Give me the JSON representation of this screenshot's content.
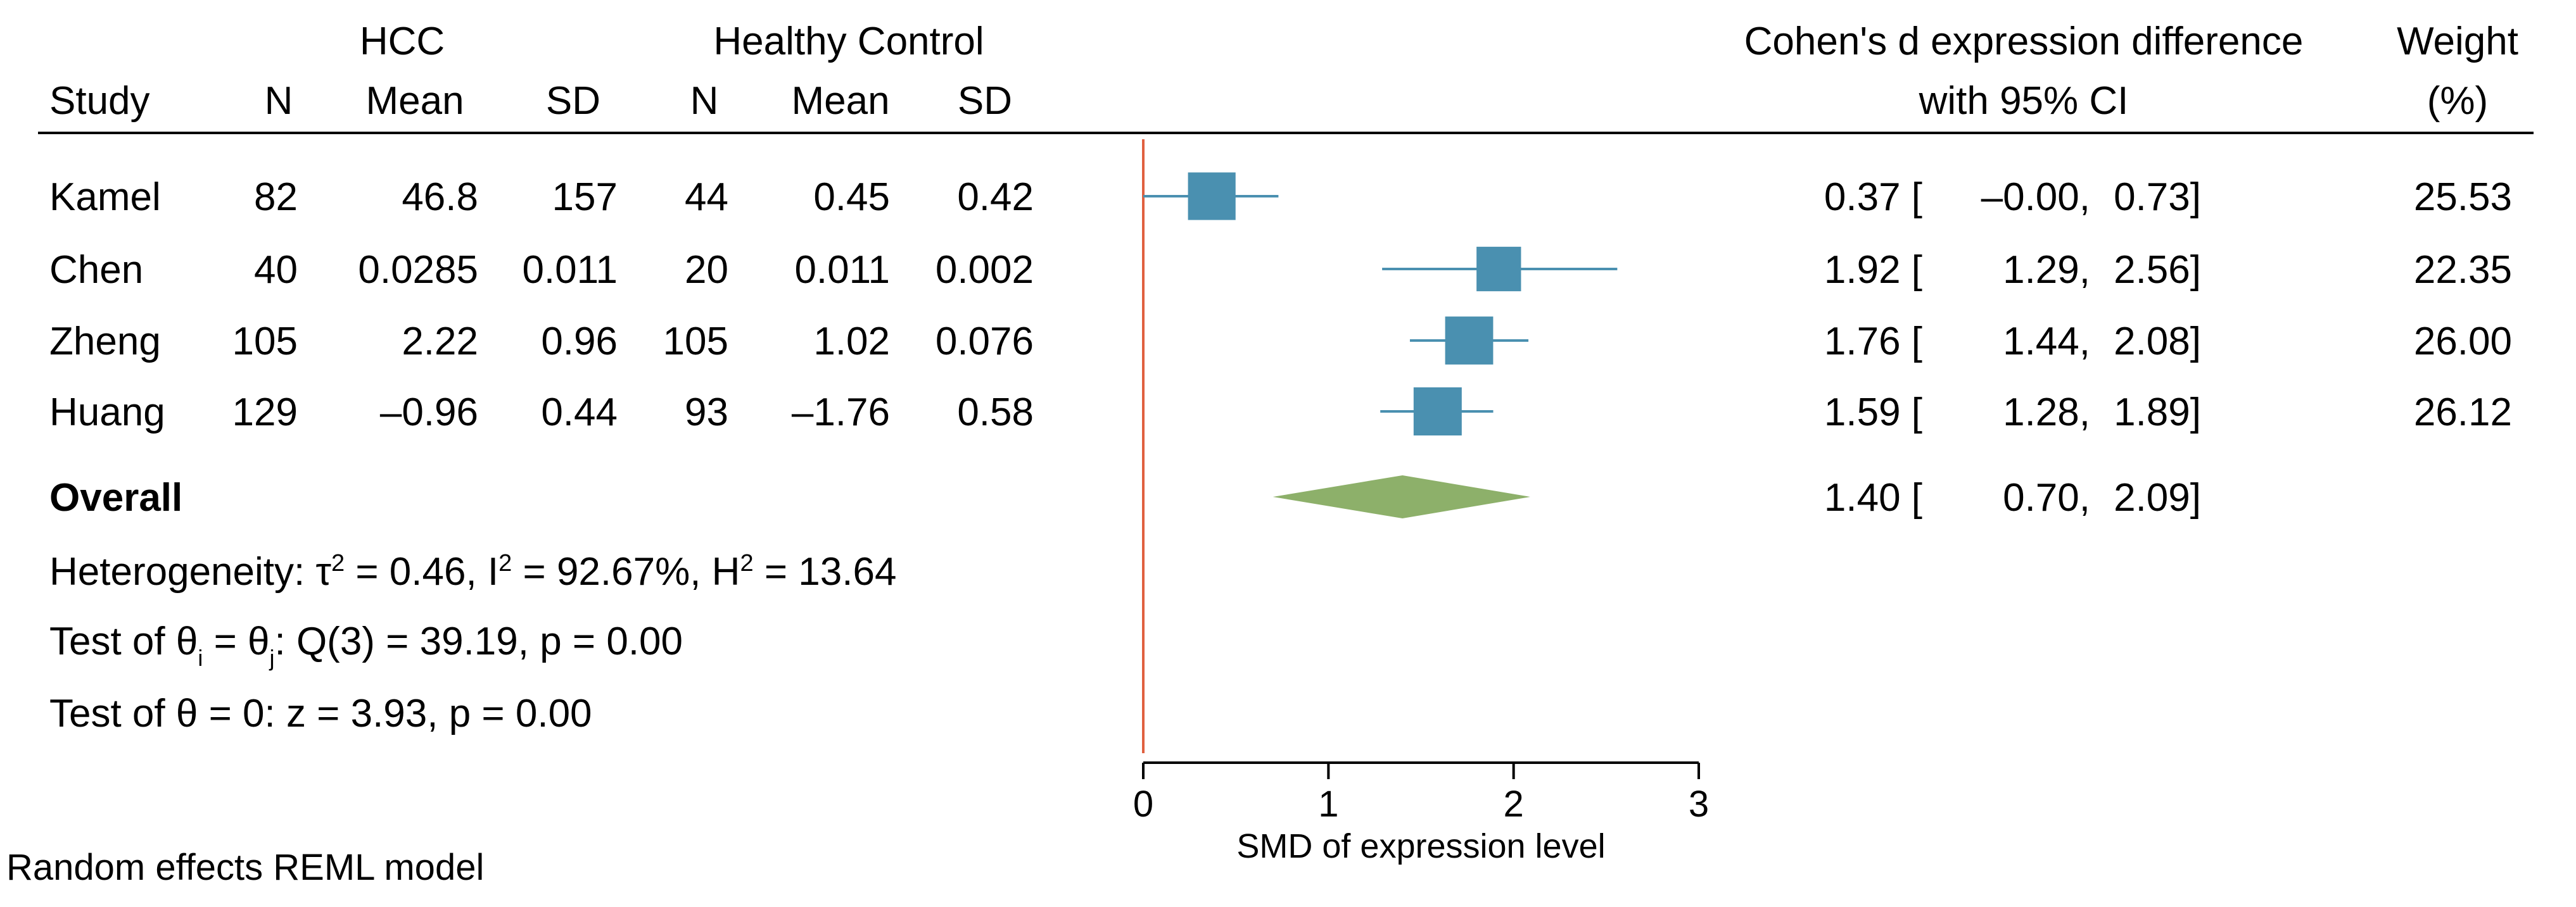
{
  "chart_data": {
    "type": "forest",
    "title": "",
    "xlabel": "SMD of expression level",
    "xlim": [
      0,
      3
    ],
    "xticks": [
      "0",
      "1",
      "2",
      "3"
    ],
    "reference_line": 0,
    "colors": {
      "study_marker": "#4a90b0",
      "overall_diamond": "#8db06a",
      "reference_line": "#e06040"
    },
    "headers": {
      "group1": "HCC",
      "group2": "Healthy Control",
      "study": "Study",
      "n": "N",
      "mean": "Mean",
      "sd": "SD",
      "effect_line1": "Cohen's d expression difference",
      "effect_line2": "with 95% CI",
      "weight_line1": "Weight",
      "weight_line2": "(%)"
    },
    "studies": [
      {
        "study": "Kamel",
        "n1": "82",
        "mean1": "46.8",
        "sd1": "157",
        "n2": "44",
        "mean2": "0.45",
        "sd2": "0.42",
        "d": 0.37,
        "lo": -0.0,
        "hi": 0.73,
        "d_text": "0.37",
        "lo_text": "–0.00",
        "hi_text": "0.73",
        "weight": "25.53",
        "weight_value": 25.53
      },
      {
        "study": "Chen",
        "n1": "40",
        "mean1": "0.0285",
        "sd1": "0.011",
        "n2": "20",
        "mean2": "0.011",
        "sd2": "0.002",
        "d": 1.92,
        "lo": 1.29,
        "hi": 2.56,
        "d_text": "1.92",
        "lo_text": "1.29",
        "hi_text": "2.56",
        "weight": "22.35",
        "weight_value": 22.35
      },
      {
        "study": "Zheng",
        "n1": "105",
        "mean1": "2.22",
        "sd1": "0.96",
        "n2": "105",
        "mean2": "1.02",
        "sd2": "0.076",
        "d": 1.76,
        "lo": 1.44,
        "hi": 2.08,
        "d_text": "1.76",
        "lo_text": "1.44",
        "hi_text": "2.08",
        "weight": "26.00",
        "weight_value": 26.0
      },
      {
        "study": "Huang",
        "n1": "129",
        "mean1": "–0.96",
        "sd1": "0.44",
        "n2": "93",
        "mean2": "–1.76",
        "sd2": "0.58",
        "d": 1.59,
        "lo": 1.28,
        "hi": 1.89,
        "d_text": "1.59",
        "lo_text": "1.28",
        "hi_text": "1.89",
        "weight": "26.12",
        "weight_value": 26.12
      }
    ],
    "overall": {
      "label": "Overall",
      "d": 1.4,
      "lo": 0.7,
      "hi": 2.09,
      "d_text": "1.40",
      "lo_text": "0.70",
      "hi_text": "2.09"
    },
    "heterogeneity": {
      "prefix": "Heterogeneity: τ",
      "tau2": "0.46",
      "i2": "92.67%",
      "h2": "13.64"
    },
    "test_equal": {
      "prefix": "Test of θ",
      "sub_i": "i",
      "sub_j": "j",
      "rest": ": Q(3) = 39.19, p = 0.00"
    },
    "test_zero": "Test of θ = 0: z = 3.93, p = 0.00",
    "model": "Random effects REML model"
  }
}
